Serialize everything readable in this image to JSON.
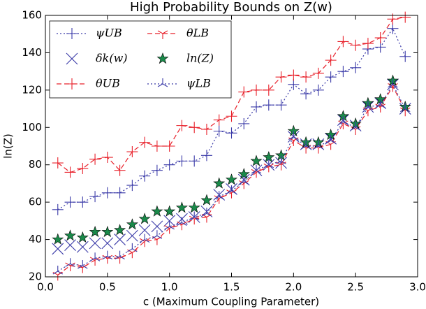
{
  "chart_data": {
    "type": "line",
    "title": "High Probability Bounds on Z(w)",
    "xlabel": "c (Maximum Coupling Parameter)",
    "ylabel": "ln(Z)",
    "x": [
      0.1,
      0.2,
      0.3,
      0.4,
      0.5,
      0.6,
      0.7,
      0.8,
      0.9,
      1.0,
      1.1,
      1.2,
      1.3,
      1.4,
      1.5,
      1.6,
      1.7,
      1.8,
      1.9,
      2.0,
      2.1,
      2.2,
      2.3,
      2.4,
      2.5,
      2.6,
      2.7,
      2.8,
      2.9
    ],
    "xlim": [
      0,
      3
    ],
    "ylim": [
      20,
      160
    ],
    "xticks": [
      {
        "value": 0,
        "label": "0.0"
      },
      {
        "value": 0.5,
        "label": "0.5"
      },
      {
        "value": 1,
        "label": "1.0"
      },
      {
        "value": 1.5,
        "label": "1.5"
      },
      {
        "value": 2,
        "label": "2.0"
      },
      {
        "value": 2.5,
        "label": "2.5"
      },
      {
        "value": 3,
        "label": "3.0"
      }
    ],
    "yticks": [
      20,
      40,
      60,
      80,
      100,
      120,
      140,
      160
    ],
    "legend": "upper left",
    "series": [
      {
        "name": "ψUB",
        "color": "#3a3aa8",
        "linestyle": "dotted",
        "marker": "plus",
        "values": [
          56,
          60,
          60,
          63,
          65,
          65,
          69,
          74,
          77,
          80,
          82,
          82,
          85,
          98,
          97,
          102,
          111,
          112,
          112,
          123,
          118,
          120,
          127,
          130,
          132,
          142,
          143,
          153,
          138
        ]
      },
      {
        "name": "δk(w)",
        "color": "#3a3aa8",
        "linestyle": "none",
        "marker": "x",
        "values": [
          35,
          37,
          36,
          38,
          38,
          40,
          42,
          45,
          47,
          50,
          51,
          52,
          55,
          64,
          67,
          72,
          77,
          80,
          81,
          95,
          91,
          91,
          94,
          104,
          101,
          111,
          113,
          123,
          110
        ]
      },
      {
        "name": "θUB",
        "color": "#e8202a",
        "linestyle": "dashed",
        "marker": "plus",
        "values": [
          81,
          76,
          78,
          83,
          84,
          77,
          87,
          92,
          90,
          90,
          101,
          100,
          99,
          104,
          106,
          119,
          120,
          120,
          127,
          128,
          127,
          129,
          136,
          146,
          144,
          145,
          148,
          158,
          159
        ]
      },
      {
        "name": "θLB",
        "color": "#e8202a",
        "linestyle": "dashed",
        "marker": "tri-down",
        "values": [
          21,
          26,
          25,
          29,
          30,
          30,
          33,
          39,
          40,
          46,
          48,
          51,
          52,
          62,
          65,
          70,
          76,
          79,
          80,
          93,
          89,
          89,
          91,
          102,
          99,
          109,
          111,
          122,
          109
        ]
      },
      {
        "name": "ln(Z)",
        "color": "#1a8a4a",
        "linestyle": "none",
        "marker": "star",
        "values": [
          40,
          42,
          41,
          44,
          44,
          45,
          48,
          51,
          55,
          55,
          57,
          57,
          61,
          70,
          72,
          75,
          82,
          84,
          85,
          98,
          92,
          92,
          96,
          106,
          102,
          113,
          115,
          125,
          111
        ]
      },
      {
        "name": "ψLB",
        "color": "#3a3aa8",
        "linestyle": "dotted",
        "marker": "tri-up",
        "values": [
          23,
          27,
          26,
          30,
          31,
          31,
          35,
          40,
          42,
          47,
          49,
          52,
          54,
          63,
          66,
          71,
          77,
          80,
          82,
          95,
          90,
          90,
          93,
          103,
          100,
          111,
          112,
          123,
          110
        ]
      }
    ]
  }
}
